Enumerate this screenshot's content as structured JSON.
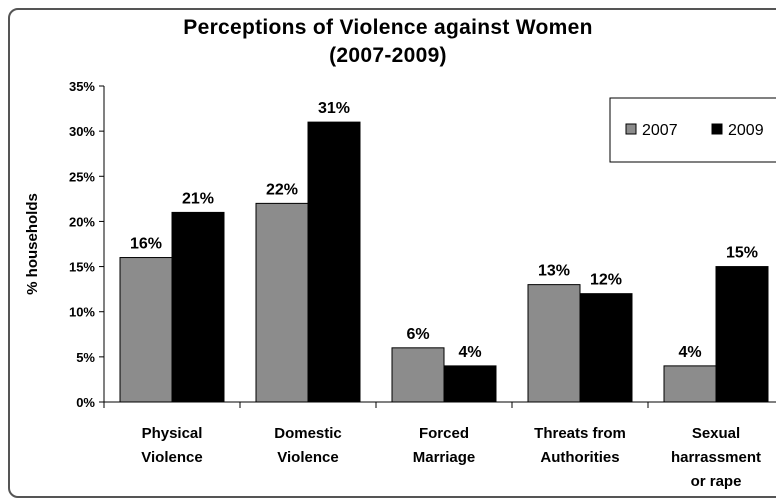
{
  "chart_data": {
    "type": "bar",
    "title_line1": "Perceptions of Violence against Women",
    "title_line2": "(2007-2009)",
    "xlabel": "",
    "ylabel": "% households",
    "ylim": [
      0,
      35
    ],
    "yticks": [
      "0%",
      "5%",
      "10%",
      "15%",
      "20%",
      "25%",
      "30%",
      "35%"
    ],
    "categories": [
      [
        "Physical",
        "Violence"
      ],
      [
        "Domestic",
        "Violence"
      ],
      [
        "Forced",
        "Marriage"
      ],
      [
        "Threats from",
        "Authorities"
      ],
      [
        "Sexual",
        "harrassment",
        "or rape"
      ]
    ],
    "series": [
      {
        "name": "2007",
        "color": "#8c8c8c",
        "values": [
          16,
          22,
          6,
          13,
          4
        ],
        "labels": [
          "16%",
          "22%",
          "6%",
          "13%",
          "4%"
        ]
      },
      {
        "name": "2009",
        "color": "#000000",
        "values": [
          21,
          31,
          4,
          12,
          15
        ],
        "labels": [
          "21%",
          "31%",
          "4%",
          "12%",
          "15%"
        ]
      }
    ],
    "legend_position": "top-right",
    "grid": false
  }
}
